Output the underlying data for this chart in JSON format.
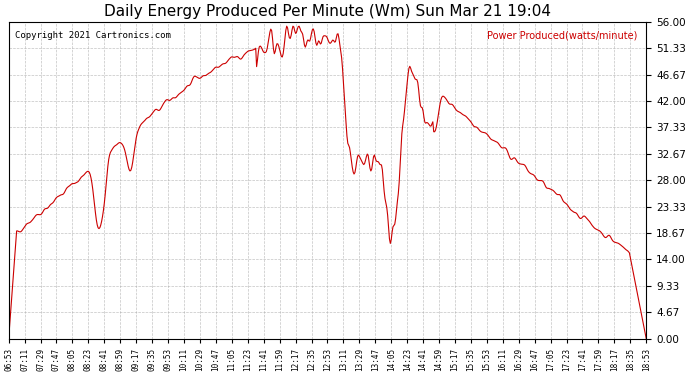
{
  "title": "Daily Energy Produced Per Minute (Wm) Sun Mar 21 19:04",
  "copyright": "Copyright 2021 Cartronics.com",
  "legend_label": "Power Produced(watts/minute)",
  "line_color": "#cc0000",
  "background_color": "#ffffff",
  "grid_color": "#aaaaaa",
  "yticks": [
    0.0,
    4.67,
    9.33,
    14.0,
    18.67,
    23.33,
    28.0,
    32.67,
    37.33,
    42.0,
    46.67,
    51.33,
    56.0
  ],
  "ymax": 56.0,
  "ymin": 0.0,
  "xtick_labels": [
    "06:53",
    "07:11",
    "07:29",
    "07:47",
    "08:05",
    "08:23",
    "08:41",
    "08:59",
    "09:17",
    "09:35",
    "09:53",
    "10:11",
    "10:29",
    "10:47",
    "11:05",
    "11:23",
    "11:41",
    "11:59",
    "12:17",
    "12:35",
    "12:53",
    "13:11",
    "13:29",
    "13:47",
    "14:05",
    "14:23",
    "14:41",
    "14:59",
    "15:17",
    "15:35",
    "15:53",
    "16:11",
    "16:29",
    "16:47",
    "17:05",
    "17:23",
    "17:41",
    "17:59",
    "18:17",
    "18:35",
    "18:53"
  ]
}
